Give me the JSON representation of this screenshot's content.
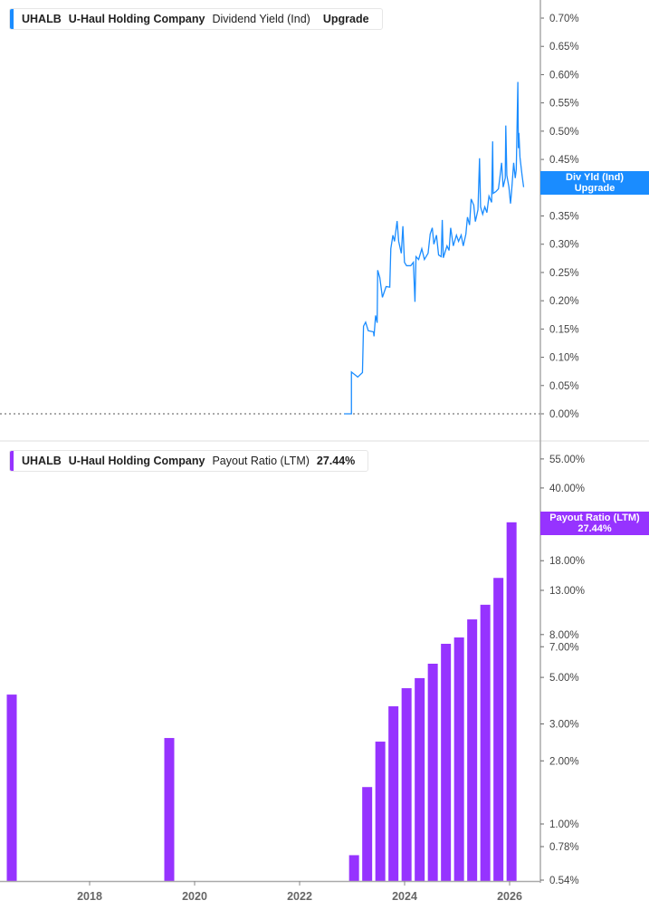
{
  "legend_top": {
    "ticker": "UHALB",
    "company": "U-Haul Holding Company",
    "metric": "Dividend Yield (Ind)",
    "value": "Upgrade",
    "color": "#1a8cff"
  },
  "legend_bottom": {
    "ticker": "UHALB",
    "company": "U-Haul Holding Company",
    "metric": "Payout Ratio (LTM)",
    "value": "27.44%",
    "color": "#9633ff"
  },
  "tag_top": {
    "line1": "Div Yld (Ind)",
    "line2": "Upgrade"
  },
  "tag_bottom": {
    "line1": "Payout Ratio (LTM)",
    "line2": "27.44%"
  },
  "chart_data": [
    {
      "type": "line",
      "ylabel": "",
      "scale": "linear",
      "ylim": [
        0,
        0.7
      ],
      "color": "#1a8cff",
      "yticks": [
        "0.00%",
        "0.05%",
        "0.10%",
        "0.15%",
        "0.20%",
        "0.25%",
        "0.30%",
        "0.35%",
        "0.40%",
        "0.45%",
        "0.50%",
        "0.55%",
        "0.60%",
        "0.65%",
        "0.70%"
      ],
      "x": [
        2022.83,
        2022.97,
        2022.97,
        2023.09,
        2023.18,
        2023.2,
        2023.24,
        2023.29,
        2023.39,
        2023.4,
        2023.43,
        2023.46,
        2023.47,
        2023.51,
        2023.56,
        2023.63,
        2023.7,
        2023.72,
        2023.76,
        2023.79,
        2023.84,
        2023.87,
        2023.92,
        2023.95,
        2023.98,
        2024.02,
        2024.1,
        2024.15,
        2024.18,
        2024.2,
        2024.25,
        2024.31,
        2024.36,
        2024.43,
        2024.47,
        2024.51,
        2024.54,
        2024.59,
        2024.63,
        2024.68,
        2024.7,
        2024.72,
        2024.79,
        2024.83,
        2024.86,
        2024.91,
        2024.97,
        2025.01,
        2025.06,
        2025.1,
        2025.15,
        2025.18,
        2025.22,
        2025.25,
        2025.3,
        2025.33,
        2025.38,
        2025.41,
        2025.43,
        2025.47,
        2025.51,
        2025.55,
        2025.59,
        2025.64,
        2025.66,
        2025.67,
        2025.72,
        2025.77,
        2025.8,
        2025.83,
        2025.86,
        2025.9,
        2025.91,
        2025.93,
        2025.97,
        2026.0,
        2026.02,
        2026.06,
        2026.09,
        2026.11,
        2026.14,
        2026.15,
        2026.16,
        2026.18,
        2026.22,
        2026.25
      ],
      "y": [
        0,
        0,
        0.074,
        0.065,
        0.073,
        0.155,
        0.162,
        0.147,
        0.145,
        0.137,
        0.174,
        0.161,
        0.254,
        0.241,
        0.206,
        0.225,
        0.224,
        0.292,
        0.316,
        0.305,
        0.341,
        0.305,
        0.284,
        0.332,
        0.268,
        0.262,
        0.262,
        0.268,
        0.198,
        0.278,
        0.273,
        0.292,
        0.273,
        0.284,
        0.318,
        0.329,
        0.3,
        0.316,
        0.281,
        0.278,
        0.343,
        0.276,
        0.297,
        0.289,
        0.329,
        0.297,
        0.316,
        0.305,
        0.316,
        0.297,
        0.318,
        0.348,
        0.334,
        0.38,
        0.369,
        0.34,
        0.361,
        0.452,
        0.366,
        0.353,
        0.366,
        0.356,
        0.385,
        0.374,
        0.482,
        0.39,
        0.393,
        0.398,
        0.42,
        0.444,
        0.401,
        0.417,
        0.51,
        0.422,
        0.401,
        0.372,
        0.393,
        0.444,
        0.417,
        0.433,
        0.587,
        0.47,
        0.497,
        0.454,
        0.422,
        0.401
      ]
    },
    {
      "type": "bar",
      "ylabel": "",
      "scale": "log",
      "ylim": [
        0.54,
        55
      ],
      "color": "#9633ff",
      "yticks": [
        0.54,
        0.78,
        1,
        2,
        3,
        5,
        7,
        8,
        13,
        18,
        25,
        40,
        55
      ],
      "ytick_labels": [
        "0.54%",
        "0.78%",
        "1.00%",
        "2.00%",
        "3.00%",
        "5.00%",
        "7.00%",
        "8.00%",
        "13.00%",
        "18.00%",
        "25.00%",
        "40.00%",
        "55.00%"
      ],
      "xticks": [
        "2018",
        "2020",
        "2022",
        "2024",
        "2026"
      ],
      "x": [
        2016.5,
        2019.5,
        2023.02,
        2023.27,
        2023.52,
        2023.77,
        2024.02,
        2024.27,
        2024.52,
        2024.77,
        2025.02,
        2025.27,
        2025.52,
        2025.77,
        2026.02
      ],
      "values": [
        4.14,
        2.57,
        0.71,
        1.5,
        2.47,
        3.64,
        4.44,
        4.96,
        5.81,
        7.23,
        7.75,
        9.45,
        11.1,
        14.9,
        27.44
      ]
    }
  ]
}
